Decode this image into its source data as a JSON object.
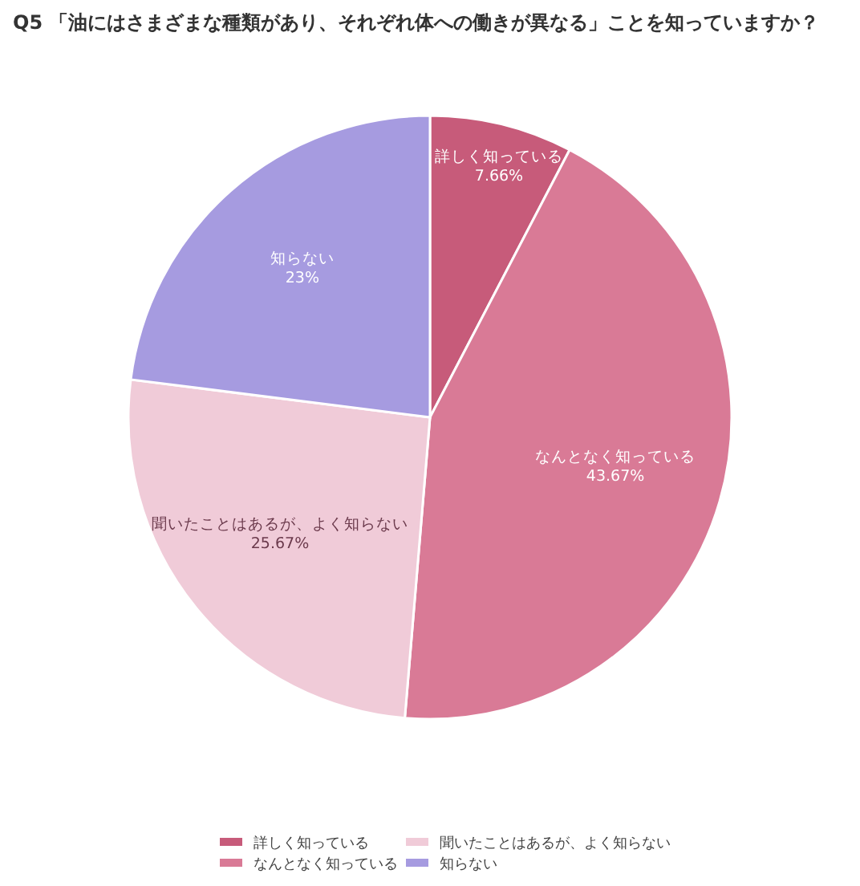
{
  "chart_data": {
    "type": "pie",
    "title": "Q5 「油にはさまざまな種類があり、それぞれ体への働きが異なる」ことを知っていますか？",
    "categories": [
      "詳しく知っている",
      "なんとなく知っている",
      "聞いたことはあるが、よく知らない",
      "知らない"
    ],
    "values": [
      7.66,
      43.67,
      25.67,
      23
    ],
    "colors": [
      "#c75b7a",
      "#d97a96",
      "#f0cbd8",
      "#a69be0"
    ],
    "value_labels": [
      "7.66%",
      "43.67%",
      "25.67%",
      "23%"
    ],
    "legend": "bottom"
  }
}
